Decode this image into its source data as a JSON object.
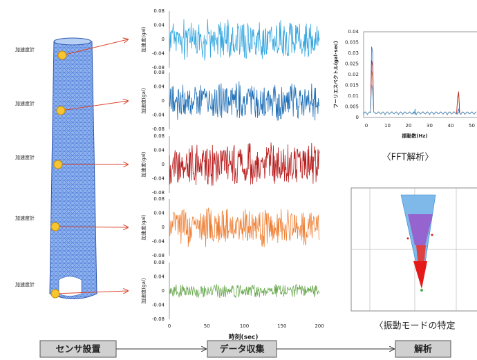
{
  "sensors": [
    "加速度計",
    "加速度計",
    "加速度計",
    "加速度計",
    "加速度計"
  ],
  "time_series": {
    "ylabel": "加速度(gal)",
    "yticks": [
      0.08,
      0.04,
      0,
      -0.04,
      -0.08
    ],
    "xticks": [
      0,
      50,
      100,
      150,
      200
    ],
    "xlabel": "時刻(sec)"
  },
  "fft": {
    "ylabel": "フーリエスペクトル(gal･sec)",
    "yticks": [
      0.04,
      0.035,
      0.03,
      0.025,
      0.02,
      0.015,
      0.01,
      0.005,
      0
    ],
    "xticks": [
      0,
      10,
      20,
      30,
      40,
      50
    ],
    "xlabel": "振動数(Hz)",
    "caption": "〈FFT解析〉"
  },
  "mode": {
    "caption": "〈振動モードの特定"
  },
  "flow": [
    "センサ設置",
    "データ収集",
    "解析"
  ]
}
